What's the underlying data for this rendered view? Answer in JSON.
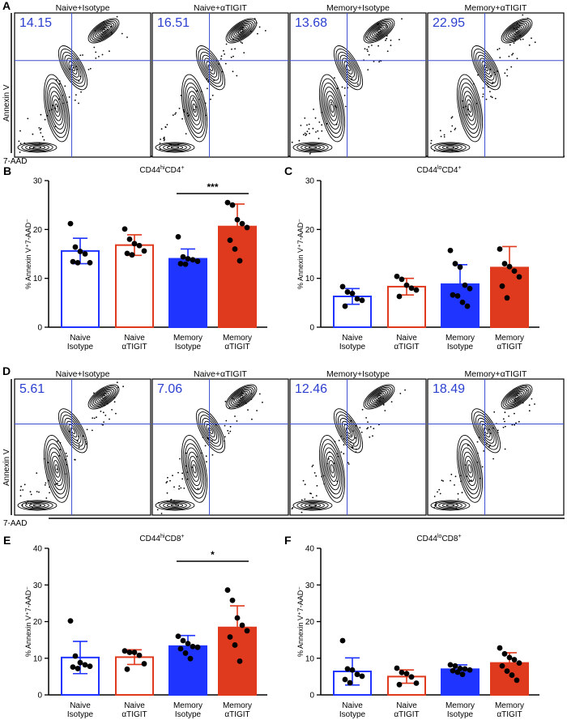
{
  "figure": {
    "flow_rows": [
      {
        "panel_label": "A",
        "y_axis_label": "Annexin V",
        "x_axis_label": "7-AAD",
        "plots": [
          {
            "title": "Naive+Isotype",
            "percent": "14.15"
          },
          {
            "title": "Naive+αTIGIT",
            "percent": "16.51"
          },
          {
            "title": "Memory+Isotype",
            "percent": "13.68"
          },
          {
            "title": "Memory+αTIGIT",
            "percent": "22.95"
          }
        ]
      },
      {
        "panel_label": "D",
        "y_axis_label": "Annexin V",
        "x_axis_label": "7-AAD",
        "plots": [
          {
            "title": "Naive+Isotype",
            "percent": "5.61"
          },
          {
            "title": "Naive+αTIGIT",
            "percent": "7.06"
          },
          {
            "title": "Memory+Isotype",
            "percent": "12.46"
          },
          {
            "title": "Memory+αTIGIT",
            "percent": "18.49"
          }
        ]
      }
    ]
  },
  "colors": {
    "naive_isotype": "#1f35ff",
    "naive_atigit": "#e03a1e",
    "memory_isotype": "#1f35ff",
    "memory_atigit": "#e03a1e",
    "quadrant_line": "#3a4fd0",
    "percent_text": "#2b3fcf"
  },
  "chart_data": [
    {
      "panel_label": "B",
      "type": "bar",
      "title_main": "CD44",
      "title_sup": "hi",
      "title_rest": "CD4",
      "title_sup2": "+",
      "ylabel": "% Annexin V⁺7-AAD⁻",
      "ylim": [
        0,
        30
      ],
      "yticks": [
        "0",
        "10",
        "20",
        "30"
      ],
      "categories": [
        [
          "Naive",
          "Isotype"
        ],
        [
          "Naive",
          "αTIGIT"
        ],
        [
          "Memory",
          "Isotype"
        ],
        [
          "Memory",
          "αTIGIT"
        ]
      ],
      "values": [
        15.6,
        16.8,
        14.0,
        20.6
      ],
      "sd": [
        2.6,
        2.1,
        2.0,
        4.6
      ],
      "points": [
        [
          21.2,
          16.4,
          15.5,
          15.0,
          13.2,
          13.4,
          13.2
        ],
        [
          20.1,
          18.0,
          17.1,
          16.7,
          15.6,
          15.1,
          14.8
        ],
        [
          18.5,
          14.4,
          14.0,
          13.8,
          13.5,
          13.0,
          12.9
        ],
        [
          25.5,
          25.0,
          22.0,
          21.2,
          20.4,
          17.8,
          16.0,
          13.6
        ]
      ],
      "significance": {
        "from": 2,
        "to": 3,
        "label": "***"
      }
    },
    {
      "panel_label": "C",
      "type": "bar",
      "title_main": "CD44",
      "title_sup": "lo",
      "title_rest": "CD4",
      "title_sup2": "+",
      "ylabel": "% Annexin V⁺7-AAD⁻",
      "ylim": [
        0,
        30
      ],
      "yticks": [
        "0",
        "10",
        "20",
        "30"
      ],
      "categories": [
        [
          "Naive",
          "Isotype"
        ],
        [
          "Naive",
          "αTIGIT"
        ],
        [
          "Memory",
          "Isotype"
        ],
        [
          "Memory",
          "αTIGIT"
        ]
      ],
      "values": [
        6.3,
        8.3,
        8.8,
        12.2
      ],
      "sd": [
        1.6,
        1.7,
        4.0,
        4.3
      ],
      "points": [
        [
          8.3,
          7.2,
          6.9,
          5.8,
          5.5,
          4.3
        ],
        [
          10.4,
          9.8,
          8.6,
          8.0,
          7.6,
          6.3
        ],
        [
          15.7,
          13.0,
          12.3,
          8.6,
          7.9,
          6.6,
          6.4,
          5.1,
          4.3
        ],
        [
          16.0,
          13.0,
          12.4,
          11.5,
          10.3,
          8.4,
          6.0
        ]
      ],
      "significance": null
    },
    {
      "panel_label": "E",
      "type": "bar",
      "title_main": "CD44",
      "title_sup": "hi",
      "title_rest": "CD8",
      "title_sup2": "+",
      "ylabel": "% Annexin V⁺7-AAD⁻",
      "ylim": [
        0,
        40
      ],
      "yticks": [
        "0",
        "10",
        "20",
        "30",
        "40"
      ],
      "categories": [
        [
          "Naive",
          "Isotype"
        ],
        [
          "Naive",
          "αTIGIT"
        ],
        [
          "Memory",
          "Isotype"
        ],
        [
          "Memory",
          "αTIGIT"
        ]
      ],
      "values": [
        10.2,
        10.3,
        13.3,
        18.4
      ],
      "sd": [
        4.4,
        2.0,
        2.9,
        5.9
      ],
      "points": [
        [
          20.2,
          10.6,
          8.8,
          8.2,
          7.8,
          7.6,
          7.2
        ],
        [
          12.0,
          11.6,
          11.6,
          10.8,
          8.5,
          7.0
        ],
        [
          16.0,
          14.8,
          14.0,
          13.2,
          13.0,
          12.6,
          11.4,
          9.9
        ],
        [
          28.6,
          25.8,
          21.0,
          19.0,
          17.5,
          15.8,
          13.6,
          9.2
        ]
      ],
      "significance": {
        "from": 2,
        "to": 3,
        "label": "*"
      }
    },
    {
      "panel_label": "F",
      "type": "bar",
      "title_main": "CD44",
      "title_sup": "lo",
      "title_rest": "CD8",
      "title_sup2": "+",
      "ylabel": "% Annexin V⁺7-AAD⁻",
      "ylim": [
        0,
        40
      ],
      "yticks": [
        "0",
        "10",
        "20",
        "30",
        "40"
      ],
      "categories": [
        [
          "Naive",
          "Isotype"
        ],
        [
          "Naive",
          "αTIGIT"
        ],
        [
          "Memory",
          "Isotype"
        ],
        [
          "Memory",
          "αTIGIT"
        ]
      ],
      "values": [
        6.4,
        5.0,
        7.0,
        8.7
      ],
      "sd": [
        3.7,
        1.8,
        1.2,
        2.8
      ],
      "points": [
        [
          14.8,
          7.1,
          6.8,
          5.6,
          5.1,
          4.2,
          3.3
        ],
        [
          7.3,
          6.1,
          5.8,
          4.9,
          3.2,
          2.8
        ],
        [
          8.2,
          7.9,
          7.2,
          7.1,
          6.8,
          6.6,
          6.2,
          5.6
        ],
        [
          12.8,
          11.2,
          10.2,
          9.6,
          8.7,
          7.9,
          6.5,
          5.4,
          4.0
        ]
      ],
      "significance": null
    }
  ]
}
